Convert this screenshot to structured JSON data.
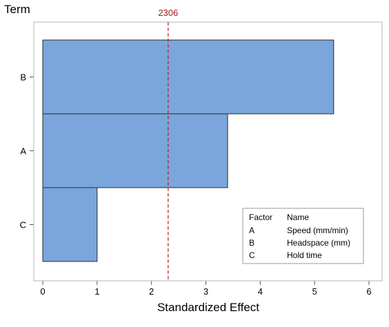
{
  "chart_data": {
    "type": "bar",
    "orientation": "horizontal",
    "categories": [
      "B",
      "A",
      "C"
    ],
    "values": [
      5.35,
      3.4,
      1.0
    ],
    "xlabel": "Standardized Effect",
    "ylabel": "Term",
    "xlim": [
      0,
      6
    ],
    "xticks": [
      0,
      1,
      2,
      3,
      4,
      5,
      6
    ],
    "grid": false,
    "bar_color": "#7aa6db",
    "bar_edge_color": "#2b2b2b",
    "reference_line": {
      "value": 2.306,
      "label": "2306",
      "color": "#b22222",
      "style": "dashed"
    },
    "legend": {
      "placement": "bottom-right",
      "headers": [
        "Factor",
        "Name"
      ],
      "rows": [
        {
          "factor": "A",
          "name": "Speed (mm/min)"
        },
        {
          "factor": "B",
          "name": "Headspace (mm)"
        },
        {
          "factor": "C",
          "name": "Hold time"
        }
      ]
    }
  }
}
